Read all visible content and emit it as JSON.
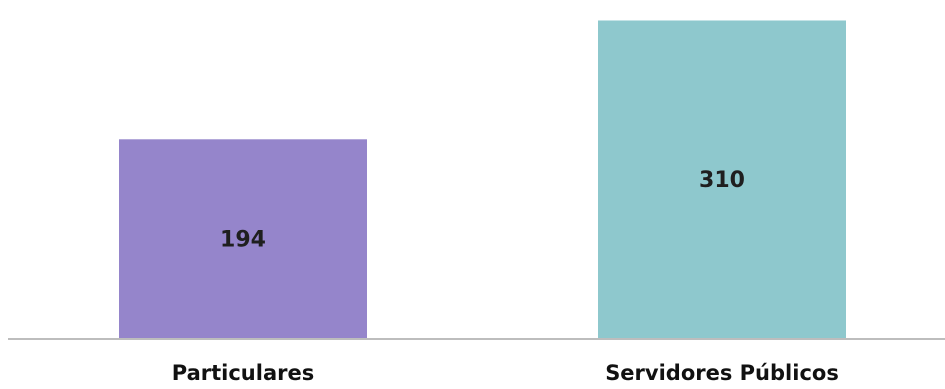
{
  "chart_data": {
    "type": "bar",
    "categories": [
      "Particulares",
      "Servidores Públicos"
    ],
    "values": [
      194,
      310
    ],
    "colors": [
      "#9585cb",
      "#8ec8cd"
    ],
    "axis_color": "#bdbdbd",
    "ylim": [
      0,
      330
    ],
    "grid": false,
    "legend": "none"
  }
}
